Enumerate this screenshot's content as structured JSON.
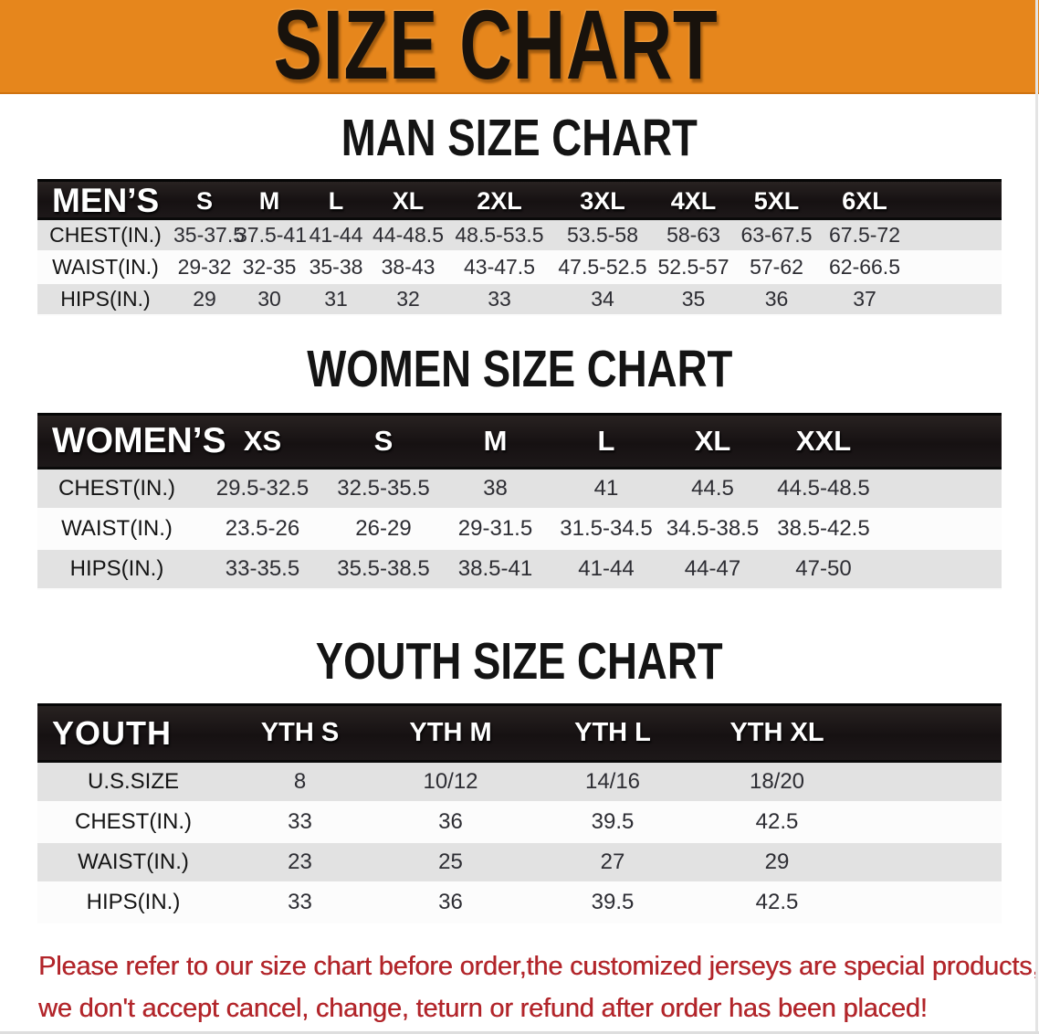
{
  "banner": {
    "title": "SIZE CHART",
    "bg_color": "#E6861C",
    "title_color": "#18120c"
  },
  "sections": [
    {
      "id": "men",
      "heading": "MAN SIZE CHART",
      "corner": "MEN’S",
      "columns": [
        "S",
        "M",
        "L",
        "XL",
        "2XL",
        "3XL",
        "4XL",
        "5XL",
        "6XL"
      ],
      "rows": [
        {
          "label": "CHEST(IN.)",
          "values": [
            "35-37.5",
            "37.5-41",
            "41-44",
            "44-48.5",
            "48.5-53.5",
            "53.5-58",
            "58-63",
            "63-67.5",
            "67.5-72"
          ]
        },
        {
          "label": "WAIST(IN.)",
          "values": [
            "29-32",
            "32-35",
            "35-38",
            "38-43",
            "43-47.5",
            "47.5-52.5",
            "52.5-57",
            "57-62",
            "62-66.5"
          ]
        },
        {
          "label": "HIPS(IN.)",
          "values": [
            "29",
            "30",
            "31",
            "32",
            "33",
            "34",
            "35",
            "36",
            "37"
          ]
        }
      ]
    },
    {
      "id": "women",
      "heading": "WOMEN SIZE CHART",
      "corner": "WOMEN’S",
      "columns": [
        "XS",
        "S",
        "M",
        "L",
        "XL",
        "XXL"
      ],
      "rows": [
        {
          "label": "CHEST(IN.)",
          "values": [
            "29.5-32.5",
            "32.5-35.5",
            "38",
            "41",
            "44.5",
            "44.5-48.5"
          ]
        },
        {
          "label": "WAIST(IN.)",
          "values": [
            "23.5-26",
            "26-29",
            "29-31.5",
            "31.5-34.5",
            "34.5-38.5",
            "38.5-42.5"
          ]
        },
        {
          "label": "HIPS(IN.)",
          "values": [
            "33-35.5",
            "35.5-38.5",
            "38.5-41",
            "41-44",
            "44-47",
            "47-50"
          ]
        }
      ]
    },
    {
      "id": "youth",
      "heading": "YOUTH SIZE CHART",
      "corner": "YOUTH",
      "columns": [
        "YTH S",
        "YTH M",
        "YTH L",
        "YTH XL"
      ],
      "rows": [
        {
          "label": "U.S.SIZE",
          "values": [
            "8",
            "10/12",
            "14/16",
            "18/20"
          ]
        },
        {
          "label": "CHEST(IN.)",
          "values": [
            "33",
            "36",
            "39.5",
            "42.5"
          ]
        },
        {
          "label": "WAIST(IN.)",
          "values": [
            "23",
            "25",
            "27",
            "29"
          ]
        },
        {
          "label": "HIPS(IN.)",
          "values": [
            "33",
            "36",
            "39.5",
            "42.5"
          ]
        }
      ]
    }
  ],
  "table_style": {
    "header_band_color": "#1a1516",
    "striped_row_color": "#e2e2e2",
    "plain_row_color": "#fcfcfc"
  },
  "disclaimer": {
    "line1": "Please refer to our size chart before order,the customized jerseys are special products,",
    "line2": "we don't accept cancel, change, teturn or refund after order has been placed!",
    "color": "#b2252a"
  }
}
